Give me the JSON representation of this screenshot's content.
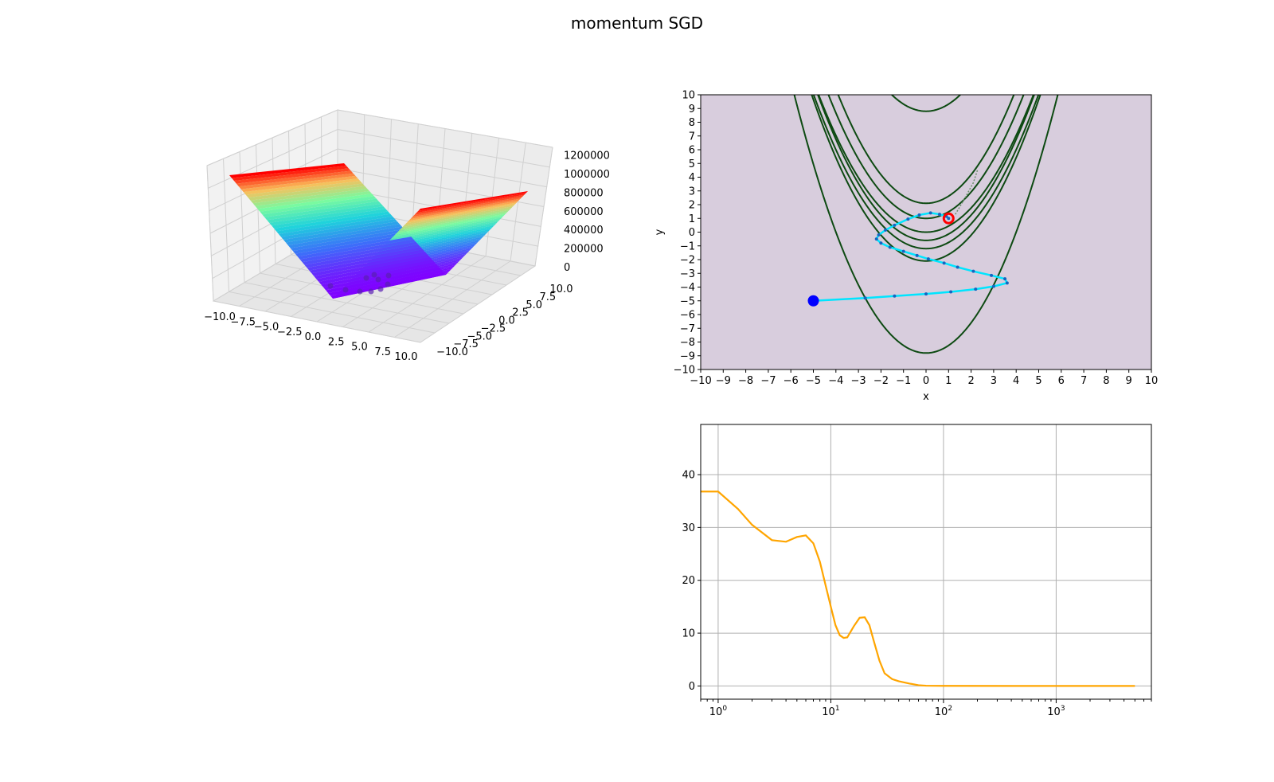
{
  "figure": {
    "title": "momentum SGD"
  },
  "colors": {
    "contour_line": "#0d4a12",
    "contour_fill": "#d8cddd",
    "path": "#00e5ff",
    "path_points": "#1565c0",
    "start_marker": "#0000ff",
    "end_marker": "#ff0000",
    "loss_line": "#ffa500",
    "grid": "#b0b0b0"
  },
  "chart_data": [
    {
      "type": "surface3d",
      "colormap": "rainbow",
      "function": "Rosenbrock-like valley",
      "x_ticks": [
        "−10.0",
        "−7.5",
        "−5.0",
        "−2.5",
        "0.0",
        "2.5",
        "5.0",
        "7.5",
        "10.0"
      ],
      "y_ticks": [
        "−10.0",
        "−7.5",
        "−5.0",
        "−2.5",
        "0.0",
        "2.5",
        "5.0",
        "7.5",
        "10.0"
      ],
      "z_ticks": [
        "0",
        "200000",
        "400000",
        "600000",
        "800000",
        "1000000",
        "1200000"
      ],
      "xlim": [
        -10,
        10
      ],
      "ylim": [
        -10,
        10
      ],
      "zlim": [
        0,
        1200000
      ]
    },
    {
      "type": "contour",
      "xlabel": "x",
      "ylabel": "y",
      "xlim": [
        -10,
        10
      ],
      "ylim": [
        -10,
        10
      ],
      "x_ticks": [
        "−10",
        "−9",
        "−8",
        "−7",
        "−6",
        "−5",
        "−4",
        "−3",
        "−2",
        "−1",
        "0",
        "1",
        "2",
        "3",
        "4",
        "5",
        "6",
        "7",
        "8",
        "9",
        "10"
      ],
      "y_ticks": [
        "10",
        "9",
        "8",
        "7",
        "6",
        "5",
        "4",
        "3",
        "2",
        "1",
        "0",
        "−1",
        "−2",
        "−3",
        "−4",
        "−5",
        "−6",
        "−7",
        "−8",
        "−9",
        "−10"
      ],
      "start": [
        -5,
        -5
      ],
      "end": [
        1,
        1
      ],
      "path": [
        [
          -5,
          -5
        ],
        [
          -2.7,
          -4.8
        ],
        [
          -1.4,
          -4.65
        ],
        [
          0.0,
          -4.5
        ],
        [
          1.1,
          -4.35
        ],
        [
          2.2,
          -4.15
        ],
        [
          3.0,
          -3.95
        ],
        [
          3.6,
          -3.7
        ],
        [
          3.5,
          -3.4
        ],
        [
          2.9,
          -3.15
        ],
        [
          2.1,
          -2.85
        ],
        [
          1.4,
          -2.55
        ],
        [
          0.8,
          -2.25
        ],
        [
          0.1,
          -1.95
        ],
        [
          -0.4,
          -1.7
        ],
        [
          -1.0,
          -1.4
        ],
        [
          -1.6,
          -1.1
        ],
        [
          -2.0,
          -0.8
        ],
        [
          -2.2,
          -0.5
        ],
        [
          -2.1,
          -0.2
        ],
        [
          -1.8,
          0.15
        ],
        [
          -1.4,
          0.5
        ],
        [
          -0.8,
          0.95
        ],
        [
          -0.3,
          1.25
        ],
        [
          0.2,
          1.4
        ],
        [
          0.6,
          1.3
        ],
        [
          0.9,
          1.15
        ],
        [
          1.0,
          1.0
        ]
      ]
    },
    {
      "type": "line",
      "x_scale": "log",
      "xlim": [
        0.7,
        7000
      ],
      "ylim": [
        -2.5,
        49.5
      ],
      "x_ticks": [
        1,
        10,
        100,
        1000
      ],
      "y_ticks": [
        "0",
        "10",
        "20",
        "30",
        "40"
      ],
      "grid": true,
      "series": [
        {
          "x": [
            0.7,
            1,
            1.5,
            2,
            3,
            4,
            5,
            6,
            7,
            8,
            9,
            10,
            11,
            12,
            13,
            14,
            16,
            18,
            20,
            22,
            24,
            27,
            30,
            35,
            40,
            50,
            60,
            70,
            100,
            500,
            5000
          ],
          "values": [
            36.8,
            36.8,
            33.5,
            30.5,
            27.6,
            27.3,
            28.2,
            28.5,
            27.0,
            23.5,
            19.0,
            15.0,
            11.5,
            9.6,
            9.1,
            9.2,
            11.3,
            12.9,
            13.0,
            11.5,
            8.6,
            4.8,
            2.4,
            1.3,
            0.9,
            0.45,
            0.15,
            0.05,
            0.02,
            0.01,
            0.01
          ]
        }
      ]
    }
  ]
}
